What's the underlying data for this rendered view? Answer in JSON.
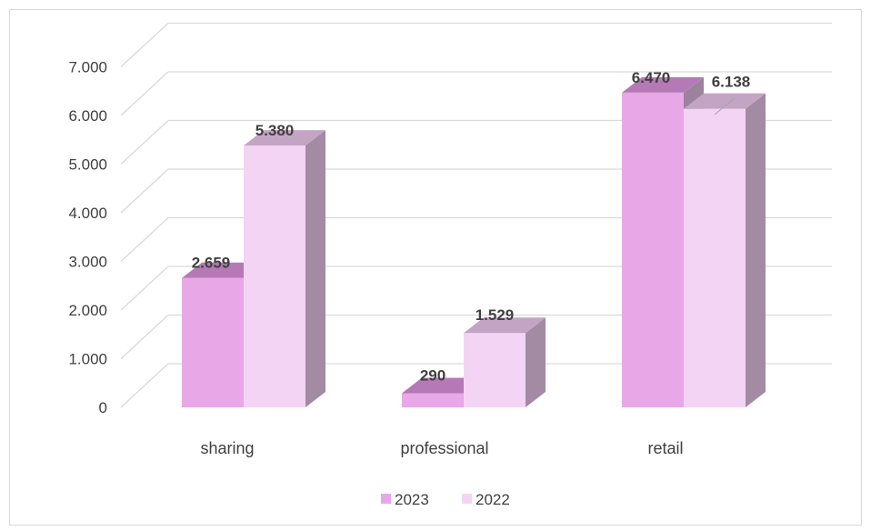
{
  "chart_data": {
    "type": "bar",
    "style": "3d-clustered",
    "categories": [
      "sharing",
      "professional",
      "retail"
    ],
    "series": [
      {
        "name": "2023",
        "values": [
          2659,
          290,
          6470
        ],
        "labels": [
          "2.659",
          "290",
          "6.470"
        ],
        "color": "#e8a8e8",
        "top_color": "#b57ab5",
        "side_color": "#9b849b"
      },
      {
        "name": "2022",
        "values": [
          5380,
          1529,
          6138
        ],
        "labels": [
          "5.380",
          "1.529",
          "6.138"
        ],
        "color": "#f4d4f4",
        "top_color": "#c4a4c4",
        "side_color": "#a38ba3"
      }
    ],
    "yticks": [
      0,
      1000,
      2000,
      3000,
      4000,
      5000,
      6000,
      7000
    ],
    "ytick_labels": [
      "0",
      "1.000",
      "2.000",
      "3.000",
      "4.000",
      "5.000",
      "6.000",
      "7.000"
    ],
    "ylim": [
      0,
      7000
    ],
    "grid": true,
    "legend_position": "bottom",
    "title": "",
    "xlabel": "",
    "ylabel": "",
    "gridline_color": "#d9d9d9"
  }
}
